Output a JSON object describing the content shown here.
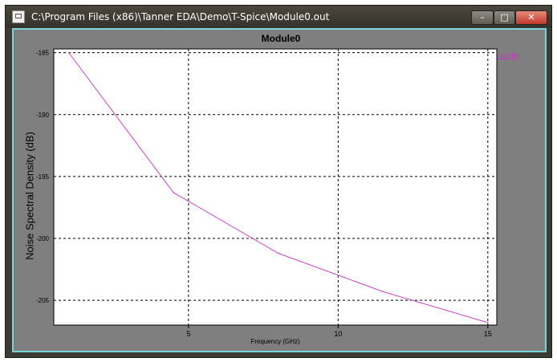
{
  "window": {
    "title": "C:\\Program Files (x86)\\Tanner EDA\\Demo\\T-Spice\\Module0.out",
    "minimize_symbol": "–",
    "maximize_symbol": "□",
    "close_symbol": "✕",
    "icon": "waveform-viewer-icon"
  },
  "plot": {
    "title": "Module0",
    "legend": "onoise(db)",
    "colors": {
      "plot_bg": "#ffffff",
      "client_bg": "#7f7f7f",
      "trace": "#cc44cc",
      "grid": "#000000",
      "client_border": "#7ad3d8"
    }
  },
  "chart_data": {
    "type": "line",
    "title": "Module0",
    "xlabel": "Frequency (GHz)",
    "ylabel": "Noise Spectral Density (dB)",
    "xlim": [
      0.5,
      15.3
    ],
    "ylim": [
      -207,
      -184.7
    ],
    "x_ticks": [
      5,
      10,
      15
    ],
    "y_ticks": [
      -185,
      -190,
      -195,
      -200,
      -205
    ],
    "grid": true,
    "grid_style": "dashed",
    "legend_position": "top-right",
    "series": [
      {
        "name": "onoise(db)",
        "color": "#cc44cc",
        "x": [
          1,
          4.5,
          8,
          11.5,
          15
        ],
        "y": [
          -185,
          -196.3,
          -201.2,
          -204.3,
          -206.8
        ]
      }
    ]
  }
}
